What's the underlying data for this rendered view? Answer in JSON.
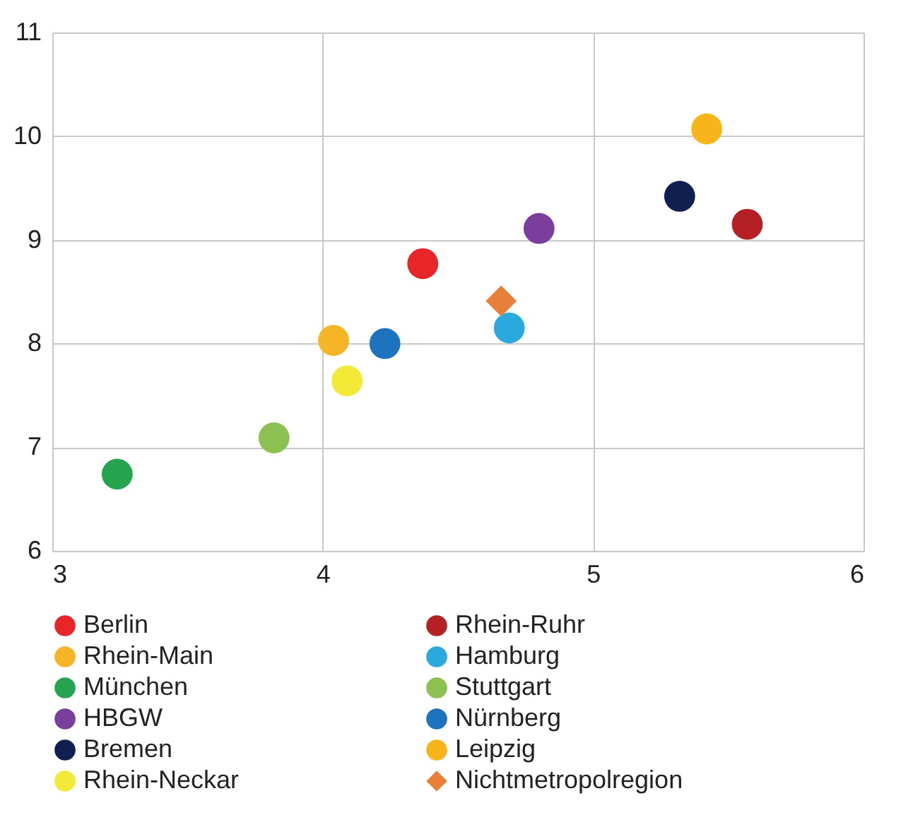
{
  "chart_data": {
    "type": "scatter",
    "xlim": [
      3,
      6
    ],
    "xticks": [
      3,
      4,
      5,
      6
    ],
    "ylim": [
      6,
      11
    ],
    "yticks": [
      6,
      7,
      8,
      9,
      10,
      11
    ],
    "grid": true,
    "legend": "bottom",
    "marker": "circle",
    "series": [
      {
        "name": "Berlin",
        "color": "#e8262a",
        "x": [
          4.37
        ],
        "values": [
          8.77
        ]
      },
      {
        "name": "Rhein-Ruhr",
        "color": "#b52025",
        "x": [
          5.57
        ],
        "values": [
          9.15
        ]
      },
      {
        "name": "Rhein-Main",
        "color": "#f5b526",
        "x": [
          4.04
        ],
        "values": [
          8.03
        ]
      },
      {
        "name": "Hamburg",
        "color": "#2aa9df",
        "x": [
          4.69
        ],
        "values": [
          8.15
        ]
      },
      {
        "name": "München",
        "color": "#26a34f",
        "x": [
          3.24
        ],
        "values": [
          6.74
        ]
      },
      {
        "name": "Stuttgart",
        "color": "#8cc152",
        "x": [
          3.82
        ],
        "values": [
          7.09
        ]
      },
      {
        "name": "HBGW",
        "color": "#7a3e9d",
        "x": [
          4.8
        ],
        "values": [
          9.11
        ]
      },
      {
        "name": "Nürnberg",
        "color": "#1e73be",
        "x": [
          4.23
        ],
        "values": [
          8.0
        ]
      },
      {
        "name": "Bremen",
        "color": "#0f2050",
        "x": [
          5.32
        ],
        "values": [
          9.42
        ]
      },
      {
        "name": "Leipzig",
        "color": "#f8b519",
        "x": [
          5.42
        ],
        "values": [
          10.07
        ]
      },
      {
        "name": "Rhein-Neckar",
        "color": "#f2ea36",
        "x": [
          4.09
        ],
        "values": [
          7.64
        ]
      },
      {
        "name": "Nichtmetropolregion",
        "color": "#e8803a",
        "x": [
          4.66
        ],
        "values": [
          8.41
        ],
        "marker": "diamond"
      }
    ]
  }
}
